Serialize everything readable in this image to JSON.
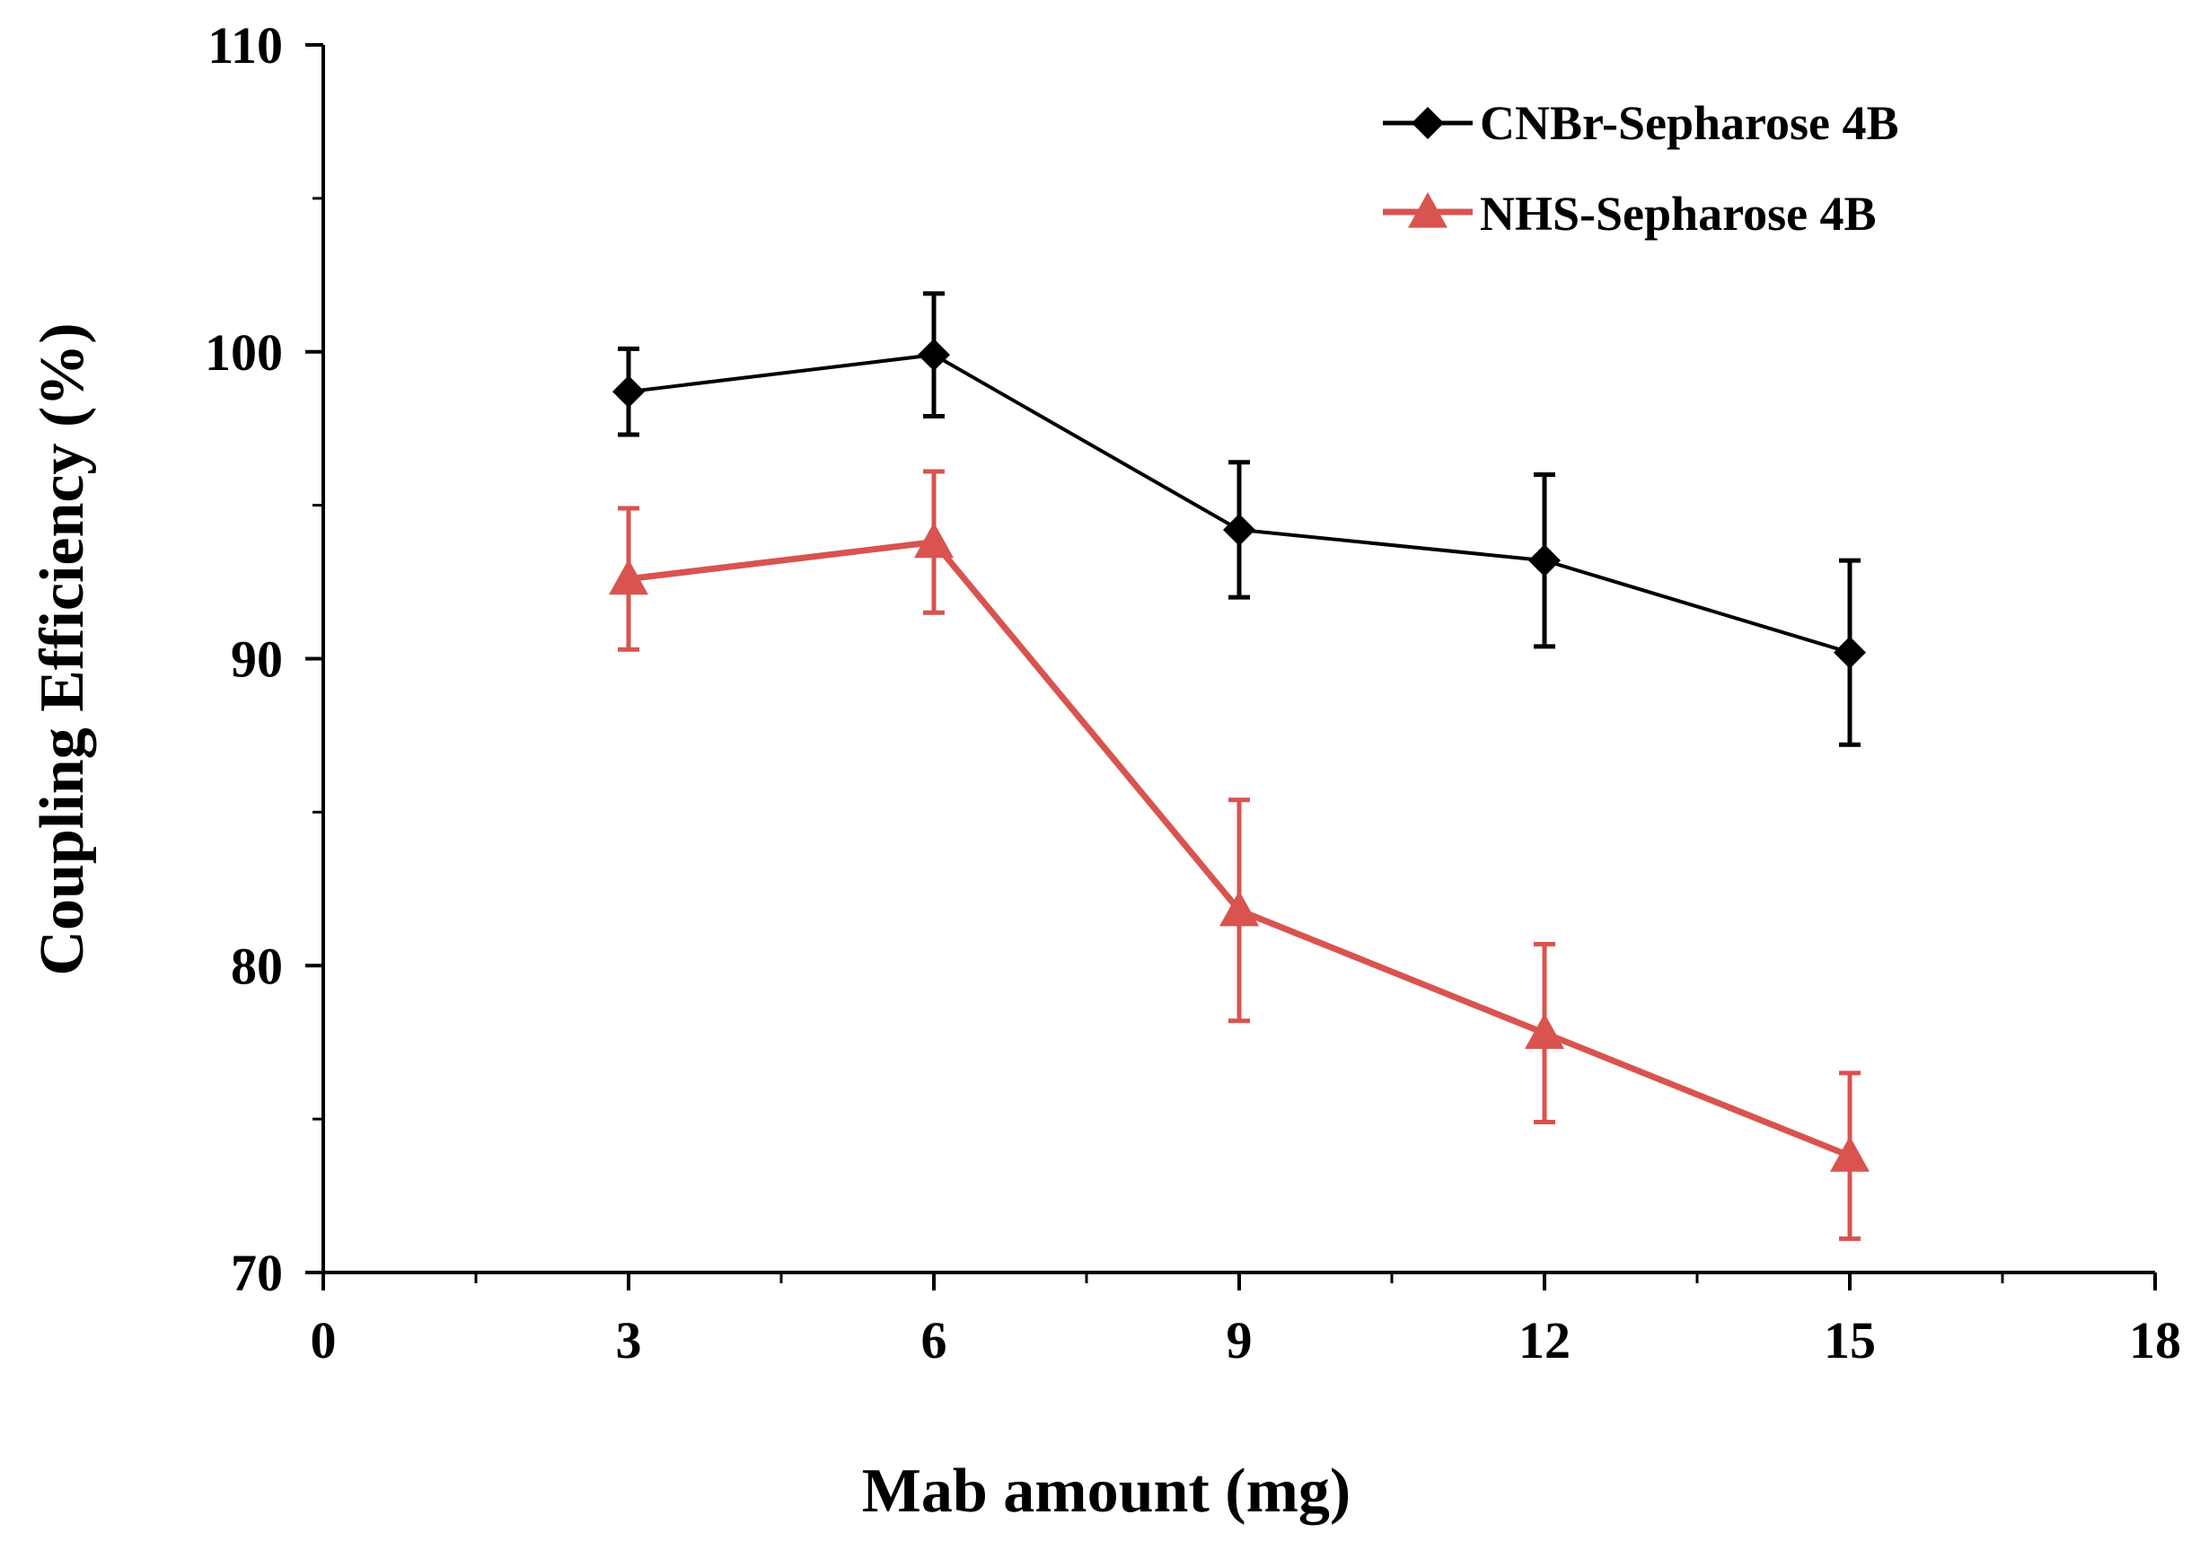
{
  "chart_data": {
    "type": "line",
    "title": "",
    "xlabel": "Mab amount (mg)",
    "ylabel": "Coupling Efficiency (%)",
    "xlim": [
      0,
      18
    ],
    "ylim": [
      70,
      110
    ],
    "x_major_ticks": [
      0,
      3,
      6,
      9,
      12,
      15,
      18
    ],
    "x_tick_labels": [
      "0",
      "3",
      "6",
      "9",
      "12",
      "15",
      "18"
    ],
    "x_minor_step": 1.5,
    "y_major_ticks": [
      70,
      80,
      90,
      100,
      110
    ],
    "y_tick_labels": [
      "70",
      "80",
      "90",
      "100",
      "110"
    ],
    "y_minor_step": 5,
    "grid": false,
    "legend_position": "top-right",
    "series": [
      {
        "name": "CNBr-Sepharose 4B",
        "color": "#000000",
        "marker": "diamond",
        "x": [
          3,
          6,
          9,
          12,
          15
        ],
        "y": [
          98.7,
          99.9,
          94.2,
          93.2,
          90.2
        ],
        "error": [
          1.4,
          2.0,
          2.2,
          2.8,
          3.0
        ]
      },
      {
        "name": "NHS-Sepharose 4B",
        "color": "#d9534f",
        "marker": "triangle",
        "x": [
          3,
          6,
          9,
          12,
          15
        ],
        "y": [
          92.6,
          93.8,
          81.8,
          77.8,
          73.8
        ],
        "error": [
          2.3,
          2.3,
          3.6,
          2.9,
          2.7
        ]
      }
    ]
  }
}
